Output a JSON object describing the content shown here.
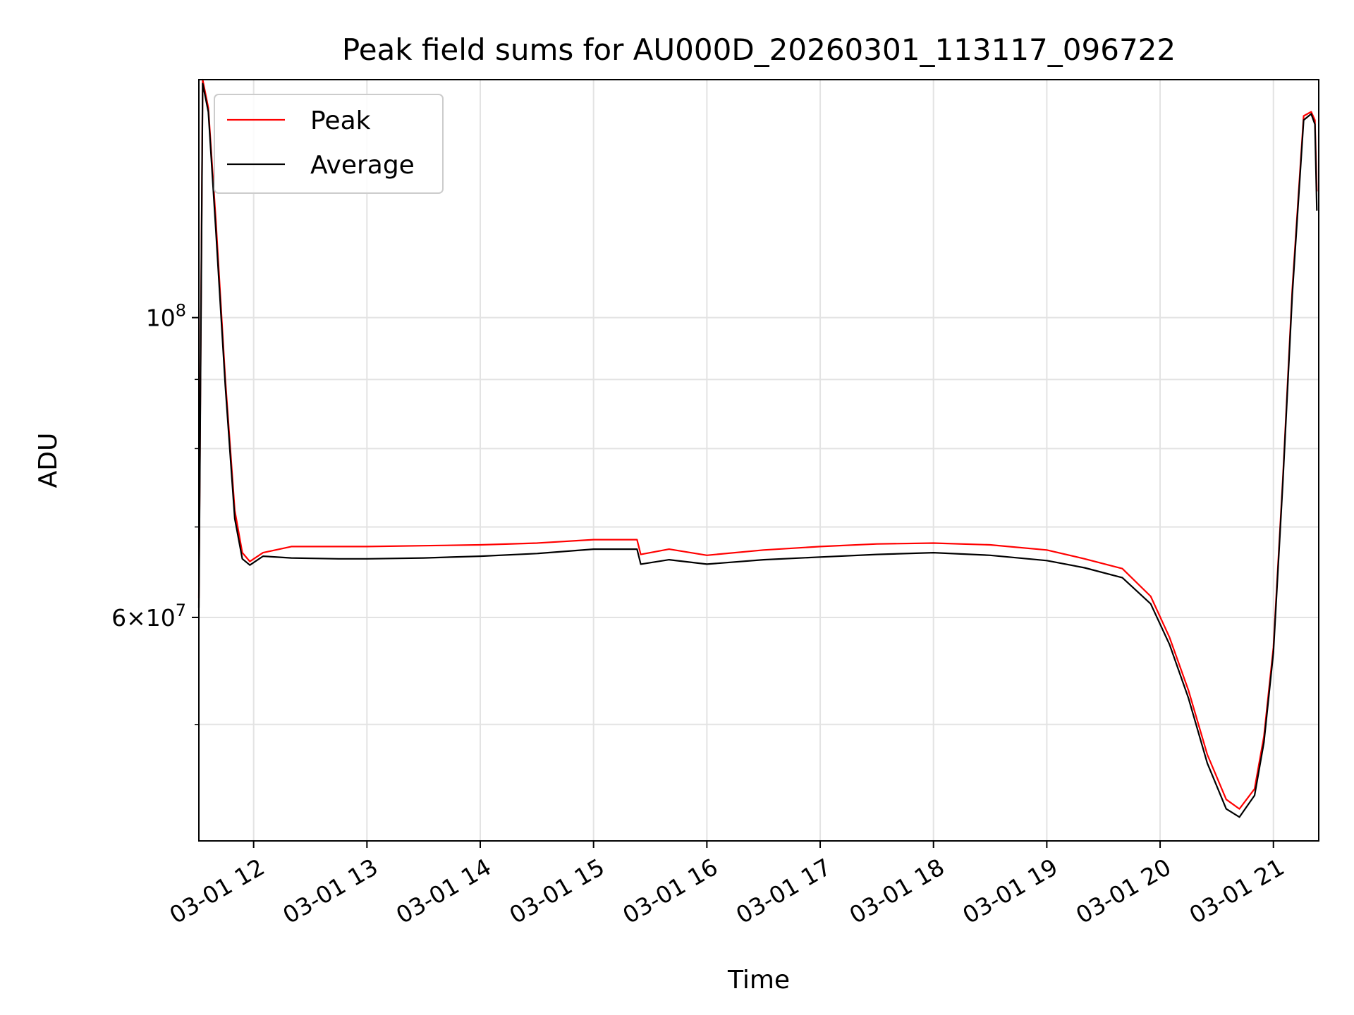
{
  "chart_data": {
    "type": "line",
    "title": "Peak field sums for AU000D_20260301_113117_096722",
    "xlabel": "Time",
    "ylabel": "ADU",
    "y_scale": "log",
    "xlim": [
      "03-01 11:31",
      "03-01 21:24"
    ],
    "ylim": [
      41000000,
      150000000
    ],
    "grid": true,
    "legend_position": "top-left",
    "x_ticks": [
      "03-01 12",
      "03-01 13",
      "03-01 14",
      "03-01 15",
      "03-01 16",
      "03-01 17",
      "03-01 18",
      "03-01 19",
      "03-01 20",
      "03-01 21"
    ],
    "y_ticks": [
      {
        "value": 100000000,
        "base": "10",
        "exp": "8"
      },
      {
        "value": 60000000,
        "mantissa": "6",
        "base": "10",
        "exp": "7"
      }
    ],
    "y_minor_ticks": [
      50000000,
      70000000,
      80000000,
      90000000
    ],
    "series": [
      {
        "name": "Peak",
        "color": "#ff0000",
        "x": [
          "03-01 11:31",
          "03-01 11:33",
          "03-01 11:36",
          "03-01 11:40",
          "03-01 11:45",
          "03-01 11:50",
          "03-01 11:54",
          "03-01 11:58",
          "03-01 12:05",
          "03-01 12:20",
          "03-01 12:45",
          "03-01 13:00",
          "03-01 13:30",
          "03-01 14:00",
          "03-01 14:30",
          "03-01 15:00",
          "03-01 15:23",
          "03-01 15:25",
          "03-01 15:40",
          "03-01 16:00",
          "03-01 16:30",
          "03-01 17:00",
          "03-01 17:30",
          "03-01 18:00",
          "03-01 18:30",
          "03-01 19:00",
          "03-01 19:20",
          "03-01 19:40",
          "03-01 19:55",
          "03-01 20:05",
          "03-01 20:15",
          "03-01 20:25",
          "03-01 20:35",
          "03-01 20:42",
          "03-01 20:50",
          "03-01 20:55",
          "03-01 21:00",
          "03-01 21:05",
          "03-01 21:10",
          "03-01 21:16",
          "03-01 21:20",
          "03-01 21:22",
          "03-01 21:23"
        ],
        "y": [
          62000000,
          150000000,
          143000000,
          118000000,
          90000000,
          72000000,
          67000000,
          66000000,
          67000000,
          67700000,
          67700000,
          67700000,
          67800000,
          67900000,
          68100000,
          68500000,
          68500000,
          66800000,
          67400000,
          66700000,
          67300000,
          67700000,
          68000000,
          68100000,
          67900000,
          67300000,
          66300000,
          65200000,
          62200000,
          58000000,
          53000000,
          47500000,
          44000000,
          43300000,
          44800000,
          49000000,
          57000000,
          76000000,
          105000000,
          141000000,
          142000000,
          140000000,
          124000000
        ]
      },
      {
        "name": "Average",
        "color": "#000000",
        "x": [
          "03-01 11:31",
          "03-01 11:33",
          "03-01 11:36",
          "03-01 11:40",
          "03-01 11:45",
          "03-01 11:50",
          "03-01 11:54",
          "03-01 11:58",
          "03-01 12:05",
          "03-01 12:20",
          "03-01 12:45",
          "03-01 13:00",
          "03-01 13:30",
          "03-01 14:00",
          "03-01 14:30",
          "03-01 15:00",
          "03-01 15:23",
          "03-01 15:25",
          "03-01 15:40",
          "03-01 16:00",
          "03-01 16:30",
          "03-01 17:00",
          "03-01 17:30",
          "03-01 18:00",
          "03-01 18:30",
          "03-01 19:00",
          "03-01 19:20",
          "03-01 19:40",
          "03-01 19:55",
          "03-01 20:05",
          "03-01 20:15",
          "03-01 20:25",
          "03-01 20:35",
          "03-01 20:42",
          "03-01 20:50",
          "03-01 20:55",
          "03-01 21:00",
          "03-01 21:05",
          "03-01 21:10",
          "03-01 21:16",
          "03-01 21:20",
          "03-01 21:22",
          "03-01 21:23"
        ],
        "y": [
          61000000,
          149000000,
          142000000,
          116000000,
          89000000,
          71000000,
          66300000,
          65600000,
          66600000,
          66400000,
          66300000,
          66300000,
          66400000,
          66600000,
          66900000,
          67400000,
          67400000,
          65700000,
          66200000,
          65700000,
          66200000,
          66500000,
          66800000,
          67000000,
          66700000,
          66100000,
          65300000,
          64200000,
          61400000,
          57300000,
          52300000,
          46800000,
          43300000,
          42700000,
          44300000,
          48500000,
          56500000,
          75500000,
          104000000,
          140000000,
          141500000,
          139000000,
          120000000
        ]
      }
    ]
  }
}
